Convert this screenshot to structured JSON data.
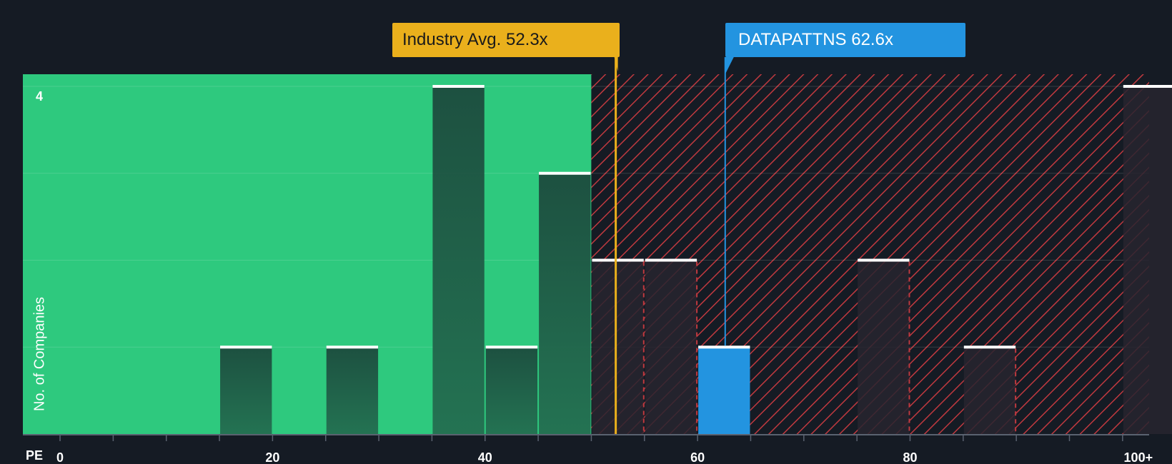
{
  "chart_data": {
    "type": "bar",
    "xlabel": "PE",
    "ylabel": "No. of Companies",
    "x_ticks": [
      "0",
      "20",
      "40",
      "60",
      "80",
      "100+"
    ],
    "x_tick_values": [
      0,
      20,
      40,
      60,
      80,
      100
    ],
    "xlim": [
      -3.5,
      102.5
    ],
    "y_ticks": [
      "4"
    ],
    "ylim": [
      0,
      4
    ],
    "bin_width": 5,
    "bins": [
      {
        "start": 15,
        "count": 1
      },
      {
        "start": 25,
        "count": 1
      },
      {
        "start": 35,
        "count": 4
      },
      {
        "start": 40,
        "count": 1
      },
      {
        "start": 45,
        "count": 3
      },
      {
        "start": 50,
        "count": 2
      },
      {
        "start": 55,
        "count": 2
      },
      {
        "start": 60,
        "count": 1,
        "highlight": true
      },
      {
        "start": 75,
        "count": 2
      },
      {
        "start": 85,
        "count": 1
      },
      {
        "start": 100,
        "count": 4
      }
    ],
    "fair_range_end": 50,
    "industry_avg": {
      "label": "Industry Avg. 52.3x",
      "value": 52.3
    },
    "company": {
      "label": "DATAPATTNS 62.6x",
      "value": 62.6
    },
    "colors": {
      "background": "#151b24",
      "fair_zone": "#2ec97e",
      "over_zone_hatch": "#c0393f",
      "bar_fair": "#1e4a3c",
      "bar_over": "#27252f",
      "company_bar": "#2394e0",
      "industry": "#eab01c",
      "cap": "#ffffff"
    }
  }
}
